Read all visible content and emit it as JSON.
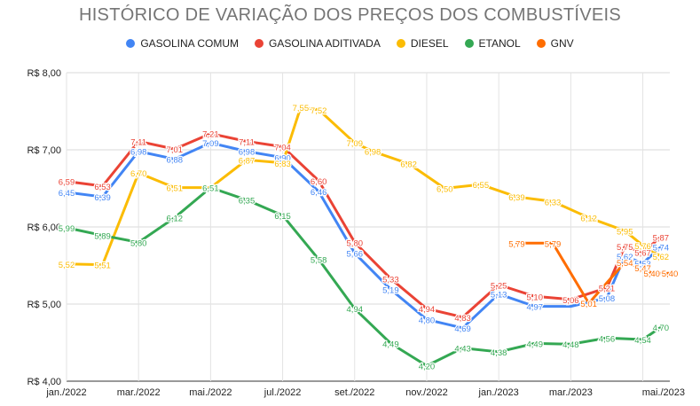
{
  "chart_data": {
    "type": "line",
    "title": "HISTÓRICO DE VARIAÇÃO DOS PREÇOS DOS COMBUSTÍVEIS",
    "xlabel": "",
    "ylabel": "",
    "ylim": [
      4,
      8
    ],
    "y_ticks": [
      "R$ 4,00",
      "R$ 5,00",
      "R$ 6,00",
      "R$ 7,00",
      "R$ 8,00"
    ],
    "x_ticks": [
      "jan./2022",
      "mar./2022",
      "mai./2022",
      "jul./2022",
      "set./2022",
      "nov./2022",
      "jan./2023",
      "mar./2023",
      "mai./2023"
    ],
    "grid": true,
    "legend_position": "top",
    "series": [
      {
        "name": "GASOLINA COMUM",
        "color": "#4285F4",
        "points": [
          {
            "x": 0,
            "y": 6.45
          },
          {
            "x": 1,
            "y": 6.39
          },
          {
            "x": 2,
            "y": 6.98
          },
          {
            "x": 3,
            "y": 6.88
          },
          {
            "x": 4,
            "y": 7.09
          },
          {
            "x": 5,
            "y": 6.98
          },
          {
            "x": 6,
            "y": 6.9
          },
          {
            "x": 7,
            "y": 6.46
          },
          {
            "x": 8,
            "y": 5.66
          },
          {
            "x": 9,
            "y": 5.19
          },
          {
            "x": 10,
            "y": 4.8
          },
          {
            "x": 11,
            "y": 4.69
          },
          {
            "x": 12,
            "y": 5.13
          },
          {
            "x": 13,
            "y": 4.97
          },
          {
            "x": 14,
            "y": 4.97
          },
          {
            "x": 15,
            "y": 5.08
          },
          {
            "x": 15.5,
            "y": 5.62
          },
          {
            "x": 16,
            "y": 5.53
          },
          {
            "x": 16.5,
            "y": 5.74
          }
        ],
        "labels": [
          "6,45",
          "6,39",
          "6,98",
          "6,88",
          "7,09",
          "6,98",
          "6,90",
          "6,46",
          "5,66",
          "5,19",
          "4,80",
          "4,69",
          "5,13",
          "4,97",
          "",
          "5,08",
          "5,62",
          "5,53",
          "5,74"
        ]
      },
      {
        "name": "GASOLINA ADITIVADA",
        "color": "#EA4335",
        "points": [
          {
            "x": 0,
            "y": 6.59
          },
          {
            "x": 1,
            "y": 6.53
          },
          {
            "x": 2,
            "y": 7.11
          },
          {
            "x": 3,
            "y": 7.01
          },
          {
            "x": 4,
            "y": 7.21
          },
          {
            "x": 5,
            "y": 7.11
          },
          {
            "x": 6,
            "y": 7.04
          },
          {
            "x": 7,
            "y": 6.6
          },
          {
            "x": 8,
            "y": 5.8
          },
          {
            "x": 9,
            "y": 5.33
          },
          {
            "x": 10,
            "y": 4.94
          },
          {
            "x": 11,
            "y": 4.83
          },
          {
            "x": 12,
            "y": 5.25
          },
          {
            "x": 13,
            "y": 5.1
          },
          {
            "x": 14,
            "y": 5.06
          },
          {
            "x": 15,
            "y": 5.21
          },
          {
            "x": 15.5,
            "y": 5.75
          },
          {
            "x": 16,
            "y": 5.67
          },
          {
            "x": 16.5,
            "y": 5.87
          }
        ],
        "labels": [
          "6,59",
          "6,53",
          "7,11",
          "7,01",
          "7,21",
          "7,11",
          "7,04",
          "6,60",
          "5,80",
          "5,33",
          "4,94",
          "4,83",
          "5,25",
          "5,10",
          "5,06",
          "5,21",
          "5,75",
          "5,67",
          "5,87"
        ]
      },
      {
        "name": "DIESEL",
        "color": "#FBBC04",
        "points": [
          {
            "x": 0,
            "y": 5.52
          },
          {
            "x": 1,
            "y": 5.51
          },
          {
            "x": 2,
            "y": 6.7
          },
          {
            "x": 3,
            "y": 6.51
          },
          {
            "x": 4,
            "y": 6.51
          },
          {
            "x": 5,
            "y": 6.87
          },
          {
            "x": 6,
            "y": 6.83
          },
          {
            "x": 6.5,
            "y": 7.55
          },
          {
            "x": 7,
            "y": 7.52
          },
          {
            "x": 8,
            "y": 7.09
          },
          {
            "x": 8.5,
            "y": 6.98
          },
          {
            "x": 9.5,
            "y": 6.82
          },
          {
            "x": 10.5,
            "y": 6.5
          },
          {
            "x": 11.5,
            "y": 6.55
          },
          {
            "x": 12.5,
            "y": 6.39
          },
          {
            "x": 13.5,
            "y": 6.33
          },
          {
            "x": 14.5,
            "y": 6.12
          },
          {
            "x": 15.5,
            "y": 5.95
          },
          {
            "x": 16,
            "y": 5.76
          },
          {
            "x": 16.5,
            "y": 5.62
          }
        ],
        "labels": [
          "5,52",
          "5,51",
          "6,70",
          "6,51",
          "6,51",
          "6,87",
          "6,83",
          "7,55",
          "7,52",
          "7,09",
          "6,98",
          "6,82",
          "6,50",
          "6,55",
          "6,39",
          "6,33",
          "6,12",
          "5,95",
          "5,76",
          "5,62"
        ]
      },
      {
        "name": "ETANOL",
        "color": "#34A853",
        "points": [
          {
            "x": 0,
            "y": 5.99
          },
          {
            "x": 1,
            "y": 5.89
          },
          {
            "x": 2,
            "y": 5.8
          },
          {
            "x": 3,
            "y": 6.12
          },
          {
            "x": 4,
            "y": 6.51
          },
          {
            "x": 5,
            "y": 6.35
          },
          {
            "x": 6,
            "y": 6.15
          },
          {
            "x": 7,
            "y": 5.58
          },
          {
            "x": 8,
            "y": 4.94
          },
          {
            "x": 9,
            "y": 4.49
          },
          {
            "x": 10,
            "y": 4.2
          },
          {
            "x": 11,
            "y": 4.43
          },
          {
            "x": 12,
            "y": 4.38
          },
          {
            "x": 13,
            "y": 4.49
          },
          {
            "x": 14,
            "y": 4.48
          },
          {
            "x": 15,
            "y": 4.56
          },
          {
            "x": 16,
            "y": 4.54
          },
          {
            "x": 16.5,
            "y": 4.7
          }
        ],
        "labels": [
          "5,99",
          "5,89",
          "5,80",
          "6,12",
          "6,51",
          "6,35",
          "6,15",
          "5,58",
          "4,94",
          "4,49",
          "4,20",
          "4,43",
          "4,38",
          "4,49",
          "4,48",
          "4,56",
          "4,54",
          "4,70"
        ]
      },
      {
        "name": "GNV",
        "color": "#FF6D01",
        "points": [
          {
            "x": 12.5,
            "y": 5.79
          },
          {
            "x": 13.5,
            "y": 5.79
          },
          {
            "x": 14.5,
            "y": 5.01
          },
          {
            "x": 15.5,
            "y": 5.54
          },
          {
            "x": 16,
            "y": 5.47
          },
          {
            "x": 16.25,
            "y": 5.4
          },
          {
            "x": 16.75,
            "y": 5.4
          }
        ],
        "labels": [
          "5,79",
          "5,79",
          "5,01",
          "5,54",
          "5,47",
          "5,40",
          "5,40"
        ]
      }
    ]
  }
}
